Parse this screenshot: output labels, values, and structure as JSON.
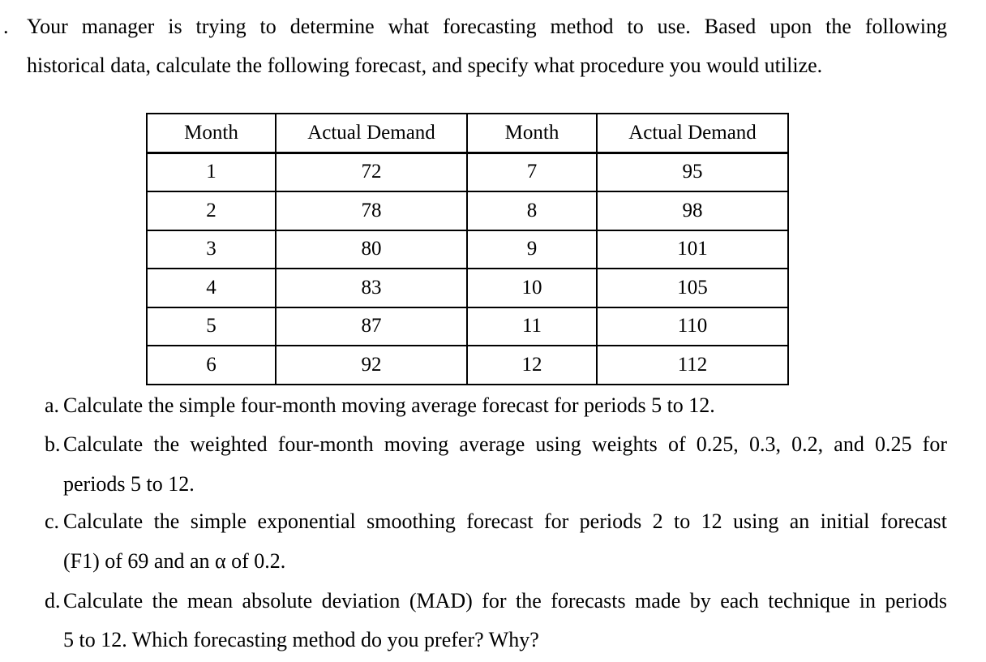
{
  "question": {
    "number_marker": ".",
    "intro_line1": "Your manager is trying to determine what forecasting method to use. Based upon the following",
    "intro_line2": "historical data, calculate the following forecast, and specify what procedure you would utilize."
  },
  "table": {
    "headers": [
      "Month",
      "Actual Demand",
      "Month",
      "Actual Demand"
    ],
    "rows": [
      [
        "1",
        "72",
        "7",
        "95"
      ],
      [
        "2",
        "78",
        "8",
        "98"
      ],
      [
        "3",
        "80",
        "9",
        "101"
      ],
      [
        "4",
        "83",
        "10",
        "105"
      ],
      [
        "5",
        "87",
        "11",
        "110"
      ],
      [
        "6",
        "92",
        "12",
        "112"
      ]
    ]
  },
  "parts": [
    {
      "label": "a.",
      "lines": [
        "Calculate the simple four-month moving average forecast for periods 5 to 12."
      ]
    },
    {
      "label": "b.",
      "lines": [
        "Calculate the weighted four-month moving average using weights of 0.25, 0.3, 0.2, and 0.25 for",
        "periods 5 to 12."
      ]
    },
    {
      "label": "c.",
      "lines": [
        "Calculate the simple exponential smoothing forecast for periods 2 to 12 using an initial forecast",
        "(F1) of 69 and an α of 0.2."
      ]
    },
    {
      "label": "d.",
      "lines": [
        "Calculate the mean absolute deviation (MAD) for the forecasts made by each technique in periods",
        "5 to 12. Which forecasting method do you prefer? Why?"
      ]
    }
  ]
}
